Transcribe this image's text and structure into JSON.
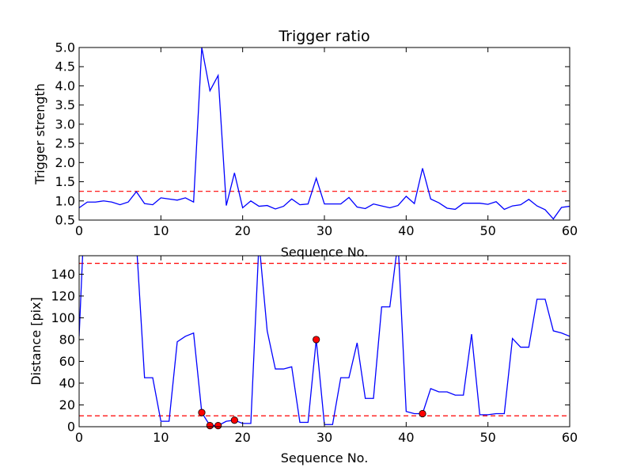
{
  "colors": {
    "series": "#0000ff",
    "threshold": "#ff0000",
    "marker": "#ff0000",
    "axes": "#000000"
  },
  "chart_data": [
    {
      "type": "line",
      "title": "Trigger ratio",
      "xlabel": "Sequence No.",
      "ylabel": "Trigger strength",
      "xlim": [
        0,
        60
      ],
      "ylim": [
        0.5,
        5.0
      ],
      "xticks": [
        "0",
        "10",
        "20",
        "30",
        "40",
        "50",
        "60"
      ],
      "yticks": [
        "0.5",
        "1.0",
        "1.5",
        "2.0",
        "2.5",
        "3.0",
        "3.5",
        "4.0",
        "4.5",
        "5.0"
      ],
      "threshold": 1.25,
      "x": [
        0,
        1,
        2,
        3,
        4,
        5,
        6,
        7,
        8,
        9,
        10,
        11,
        12,
        13,
        14,
        15,
        16,
        17,
        18,
        19,
        20,
        21,
        22,
        23,
        24,
        25,
        26,
        27,
        28,
        29,
        30,
        31,
        32,
        33,
        34,
        35,
        36,
        37,
        38,
        39,
        40,
        41,
        42,
        43,
        44,
        45,
        46,
        47,
        48,
        49,
        50,
        51,
        52,
        53,
        54,
        55,
        56,
        57,
        58,
        59,
        60
      ],
      "y": [
        0.82,
        0.97,
        0.97,
        1.0,
        0.97,
        0.9,
        0.97,
        1.24,
        0.93,
        0.9,
        1.08,
        1.05,
        1.02,
        1.08,
        0.97,
        5.0,
        3.87,
        4.27,
        0.88,
        1.73,
        0.82,
        1.0,
        0.86,
        0.88,
        0.79,
        0.86,
        1.05,
        0.9,
        0.92,
        1.59,
        0.92,
        0.92,
        0.92,
        1.09,
        0.84,
        0.8,
        0.92,
        0.87,
        0.82,
        0.88,
        1.12,
        0.93,
        1.85,
        1.05,
        0.95,
        0.81,
        0.78,
        0.94,
        0.94,
        0.94,
        0.91,
        0.98,
        0.78,
        0.87,
        0.9,
        1.04,
        0.87,
        0.77,
        0.53,
        0.83,
        0.86
      ]
    },
    {
      "type": "line",
      "title": "",
      "xlabel": "Sequence No.",
      "ylabel": "Distance [pix]",
      "xlim": [
        0,
        60
      ],
      "ylim": [
        0,
        157
      ],
      "xticks": [
        "0",
        "10",
        "20",
        "30",
        "40",
        "50",
        "60"
      ],
      "yticks": [
        "0",
        "20",
        "40",
        "60",
        "80",
        "100",
        "120",
        "140"
      ],
      "thresholds": [
        150,
        10
      ],
      "x": [
        0,
        0.5,
        7,
        8,
        9,
        10,
        11,
        12,
        13,
        14,
        15,
        16,
        17,
        18,
        19,
        20,
        21,
        22,
        23,
        24,
        25,
        26,
        27,
        28,
        29,
        30,
        31,
        32,
        33,
        34,
        35,
        36,
        37,
        38,
        39,
        40,
        41,
        42,
        43,
        44,
        45,
        46,
        47,
        48,
        49,
        50,
        51,
        52,
        53,
        54,
        55,
        56,
        57,
        58,
        59,
        60
      ],
      "y": [
        83,
        170,
        170,
        45,
        45,
        5,
        5,
        78,
        83,
        86,
        13,
        1,
        1,
        5,
        6,
        3,
        3,
        170,
        88,
        53,
        53,
        55,
        4,
        4,
        80,
        2,
        2,
        45,
        45,
        77,
        26,
        26,
        110,
        110,
        170,
        14,
        12,
        12,
        35,
        32,
        32,
        29,
        29,
        85,
        11,
        11,
        12,
        12,
        81,
        73,
        73,
        117,
        117,
        88,
        86,
        83
      ],
      "marker_points": [
        {
          "x": 15,
          "y": 13
        },
        {
          "x": 16,
          "y": 1
        },
        {
          "x": 17,
          "y": 1
        },
        {
          "x": 19,
          "y": 6
        },
        {
          "x": 29,
          "y": 80
        },
        {
          "x": 42,
          "y": 12
        }
      ]
    }
  ]
}
